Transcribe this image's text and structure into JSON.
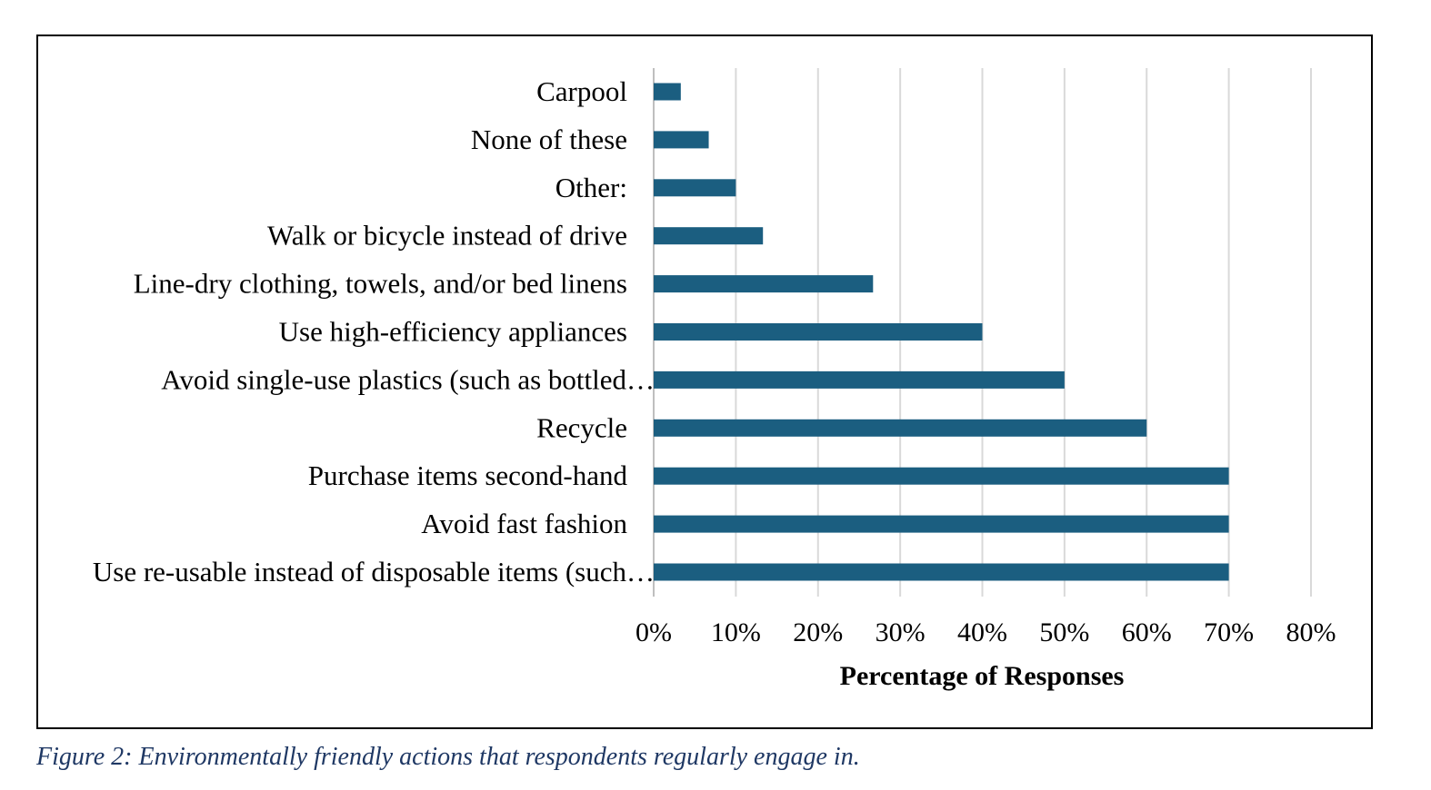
{
  "chart_data": {
    "type": "bar",
    "orientation": "horizontal",
    "categories": [
      "Carpool",
      "None of these",
      "Other:",
      "Walk or bicycle instead of drive",
      "Line-dry clothing, towels, and/or bed linens",
      "Use high-efficiency appliances",
      "Avoid single-use plastics (such as bottled…",
      "Recycle",
      "Purchase items second-hand",
      "Avoid fast fashion",
      "Use re-usable instead of disposable items (such…"
    ],
    "values": [
      3.3,
      6.7,
      10,
      13.3,
      26.7,
      40,
      50,
      60,
      70,
      70,
      70
    ],
    "xlabel": "Percentage of Responses",
    "ylabel": "",
    "xlim": [
      0,
      80
    ],
    "ticks": [
      "0%",
      "10%",
      "20%",
      "30%",
      "40%",
      "50%",
      "60%",
      "70%",
      "80%"
    ],
    "tick_values": [
      0,
      10,
      20,
      30,
      40,
      50,
      60,
      70,
      80
    ],
    "grid": "vertical",
    "legend": "none",
    "bar_color": "#1b5e80",
    "grid_color": "#d9d9d9"
  },
  "caption": {
    "text": "Figure 2: Environmentally friendly actions that respondents regularly engage in.",
    "color": "#1f3864"
  }
}
